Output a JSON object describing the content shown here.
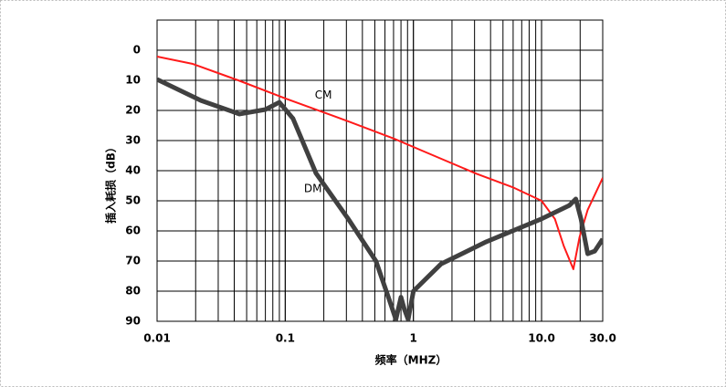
{
  "chart_data": {
    "type": "line",
    "y_label": "插入耗损（dB）",
    "x_label": "频率（MHZ）",
    "x_scale": "log",
    "y_reversed": true,
    "grid": true,
    "x_minor_grid": true,
    "xlim": [
      0.01,
      30
    ],
    "xticks": [
      0.01,
      0.1,
      1,
      {
        "value": 10,
        "label": "10.0"
      },
      {
        "value": 30,
        "label": "30.0"
      }
    ],
    "ylim": [
      -10,
      90
    ],
    "yticks": [
      0,
      10,
      20,
      30,
      40,
      50,
      60,
      70,
      80,
      90
    ],
    "series": [
      {
        "name": "CM",
        "color": "#ff1a1a",
        "width": 2,
        "x": [
          0.01,
          0.0188,
          0.043,
          0.1,
          0.31,
          0.71,
          1.16,
          3.1,
          5.96,
          10,
          12.7,
          14.9,
          17.7,
          19.8,
          22.9,
          30
        ],
        "values": [
          2.1,
          4.5,
          10,
          16,
          23.6,
          29.4,
          33.3,
          41,
          45.5,
          50,
          56,
          65,
          72.7,
          62,
          53,
          42.4
        ],
        "label_at": [
          0.17,
          15
        ]
      },
      {
        "name": "DM",
        "color": "#404040",
        "width": 5,
        "x": [
          0.01,
          0.022,
          0.044,
          0.07,
          0.09,
          0.115,
          0.174,
          0.31,
          0.51,
          0.65,
          0.73,
          0.8,
          0.85,
          0.91,
          1.0,
          1.64,
          3.7,
          10,
          16.5,
          18.5,
          20.3,
          22.9,
          26,
          30
        ],
        "values": [
          9.7,
          16.7,
          21.2,
          19.7,
          17.3,
          22.7,
          40.9,
          56,
          70,
          83,
          89.4,
          82,
          86,
          89.4,
          80,
          71,
          63.6,
          56,
          51.5,
          49.4,
          56,
          67.6,
          66.7,
          62.7
        ],
        "label_at": [
          0.14,
          46
        ]
      }
    ]
  }
}
